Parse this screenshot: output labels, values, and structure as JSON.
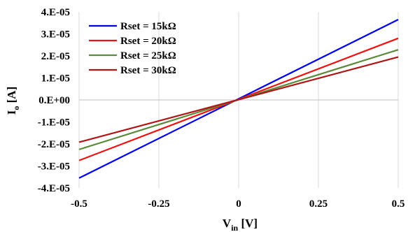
{
  "chart_data": {
    "type": "line",
    "title": "",
    "xlabel_main": "V",
    "xlabel_sub": "in",
    "xlabel_unit": "[V]",
    "ylabel_main": "I",
    "ylabel_sub": "o",
    "ylabel_unit": "[A]",
    "xlim": [
      -0.5,
      0.5
    ],
    "ylim": [
      -4e-05,
      4e-05
    ],
    "x_ticks": [
      -0.5,
      -0.25,
      0,
      0.25,
      0.5
    ],
    "x_tick_labels": [
      "-0.5",
      "-0.25",
      "0",
      "0.25",
      "0.5"
    ],
    "y_ticks": [
      4e-05,
      3e-05,
      2e-05,
      1e-05,
      0,
      -1e-05,
      -2e-05,
      -3e-05,
      -4e-05
    ],
    "y_tick_labels": [
      "4.E-05",
      "3.E-05",
      "2.E-05",
      "1.E-05",
      "0.E+00",
      "-1.E-05",
      "-2.E-05",
      "-3.E-05",
      "-4.E-05"
    ],
    "grid": "vertical",
    "legend_position": "top-left",
    "series": [
      {
        "name": "Rset = 15kΩ",
        "color": "#0000ee",
        "x": [
          -0.5,
          0.5
        ],
        "y": [
          -3.55e-05,
          3.65e-05
        ]
      },
      {
        "name": "Rset = 20kΩ",
        "color": "#ee1111",
        "x": [
          -0.5,
          0.5
        ],
        "y": [
          -2.75e-05,
          2.8e-05
        ]
      },
      {
        "name": "Rset = 25kΩ",
        "color": "#5b8a3a",
        "x": [
          -0.5,
          0.5
        ],
        "y": [
          -2.25e-05,
          2.28e-05
        ]
      },
      {
        "name": "Rset = 30kΩ",
        "color": "#b01515",
        "x": [
          -0.5,
          0.5
        ],
        "y": [
          -1.92e-05,
          1.95e-05
        ]
      }
    ]
  }
}
